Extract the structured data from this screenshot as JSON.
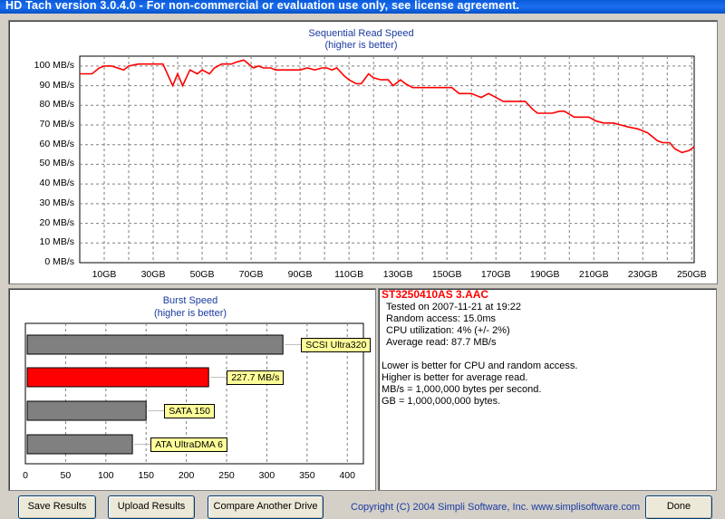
{
  "window": {
    "title": "HD Tach version 3.0.4.0  - For non-commercial or evaluation use only, see license agreement."
  },
  "seq_chart": {
    "title": "Sequential Read Speed",
    "subtitle": "(higher is better)",
    "y_ticks": [
      "100 MB/s",
      "90 MB/s",
      "80 MB/s",
      "70 MB/s",
      "60 MB/s",
      "50 MB/s",
      "40 MB/s",
      "30 MB/s",
      "20 MB/s",
      "10 MB/s",
      "0 MB/s"
    ],
    "x_ticks": [
      "10GB",
      "30GB",
      "50GB",
      "70GB",
      "90GB",
      "110GB",
      "130GB",
      "150GB",
      "170GB",
      "190GB",
      "210GB",
      "230GB",
      "250GB"
    ]
  },
  "burst_chart": {
    "title": "Burst Speed",
    "subtitle": "(higher is better)",
    "x_ticks": [
      "0",
      "50",
      "100",
      "150",
      "200",
      "250",
      "300",
      "350",
      "400"
    ],
    "bars": [
      {
        "label": "SCSI Ultra320",
        "value": 320,
        "color": "#808080"
      },
      {
        "label": "227.7 MB/s",
        "value": 227.7,
        "color": "#ff0000"
      },
      {
        "label": "SATA 150",
        "value": 150,
        "color": "#808080"
      },
      {
        "label": "ATA UltraDMA 6",
        "value": 133,
        "color": "#808080"
      }
    ]
  },
  "info": {
    "drive": "ST3250410AS 3.AAC",
    "tested": "Tested on 2007-11-21 at 19:22",
    "random_access": "Random access: 15.0ms",
    "cpu": "CPU utilization: 4% (+/- 2%)",
    "avg_read": "Average read: 87.7 MB/s",
    "note1": "Lower is better for CPU and random access.",
    "note2": "Higher is better for average read.",
    "note3": "MB/s = 1,000,000 bytes per second.",
    "note4": "GB = 1,000,000,000 bytes."
  },
  "buttons": {
    "save": "Save Results",
    "upload": "Upload Results",
    "compare": "Compare Another Drive",
    "done": "Done"
  },
  "footer": {
    "copyright": "Copyright (C) 2004 Simpli Software, Inc. www.simplisoftware.com"
  },
  "chart_data": [
    {
      "type": "line",
      "title": "Sequential Read Speed",
      "subtitle": "(higher is better)",
      "xlabel": "",
      "ylabel": "",
      "xlim": [
        0,
        251
      ],
      "ylim": [
        0,
        105
      ],
      "grid": true,
      "series": [
        {
          "color": "#ff0000",
          "x": [
            0,
            2,
            5,
            8,
            10,
            13,
            18,
            20,
            24,
            28,
            30,
            34,
            38,
            40,
            42,
            45,
            48,
            50,
            53,
            55,
            58,
            60,
            62,
            64,
            67,
            69,
            71,
            73,
            75,
            78,
            80,
            83,
            86,
            88,
            90,
            93,
            96,
            99,
            101,
            103,
            105,
            108,
            110,
            113,
            115,
            118,
            120,
            123,
            126,
            128,
            131,
            133,
            136,
            140,
            143,
            146,
            148,
            152,
            155,
            158,
            160,
            164,
            167,
            170,
            173,
            176,
            179,
            182,
            185,
            187,
            190,
            193,
            196,
            198,
            202,
            205,
            208,
            211,
            214,
            218,
            221,
            224,
            228,
            232,
            236,
            238,
            241,
            243,
            246,
            249,
            251
          ],
          "y": [
            96,
            96,
            96,
            99,
            100,
            100,
            98,
            100,
            101,
            101,
            101,
            101,
            90,
            96,
            90,
            98,
            96,
            98,
            96,
            99,
            101,
            101,
            101,
            102,
            103,
            101,
            99,
            100,
            99,
            99,
            98,
            98,
            98,
            98,
            98,
            99,
            98,
            99,
            99,
            98,
            99,
            95,
            93,
            91,
            91,
            96,
            94,
            93,
            93,
            90,
            93,
            91,
            89,
            89,
            89,
            89,
            89,
            89,
            86,
            86,
            86,
            84,
            86,
            84,
            82,
            82,
            82,
            82,
            78,
            76,
            76,
            76,
            77,
            77,
            74,
            74,
            74,
            72,
            71,
            71,
            70,
            69,
            68,
            66,
            62,
            61,
            61,
            58,
            56,
            57,
            59
          ]
        }
      ]
    },
    {
      "type": "bar",
      "title": "Burst Speed",
      "subtitle": "(higher is better)",
      "orientation": "horizontal",
      "categories": [
        "SCSI Ultra320",
        "227.7 MB/s",
        "SATA 150",
        "ATA UltraDMA 6"
      ],
      "values": [
        320,
        227.7,
        150,
        133
      ],
      "xlim": [
        0,
        420
      ],
      "grid": true
    }
  ]
}
